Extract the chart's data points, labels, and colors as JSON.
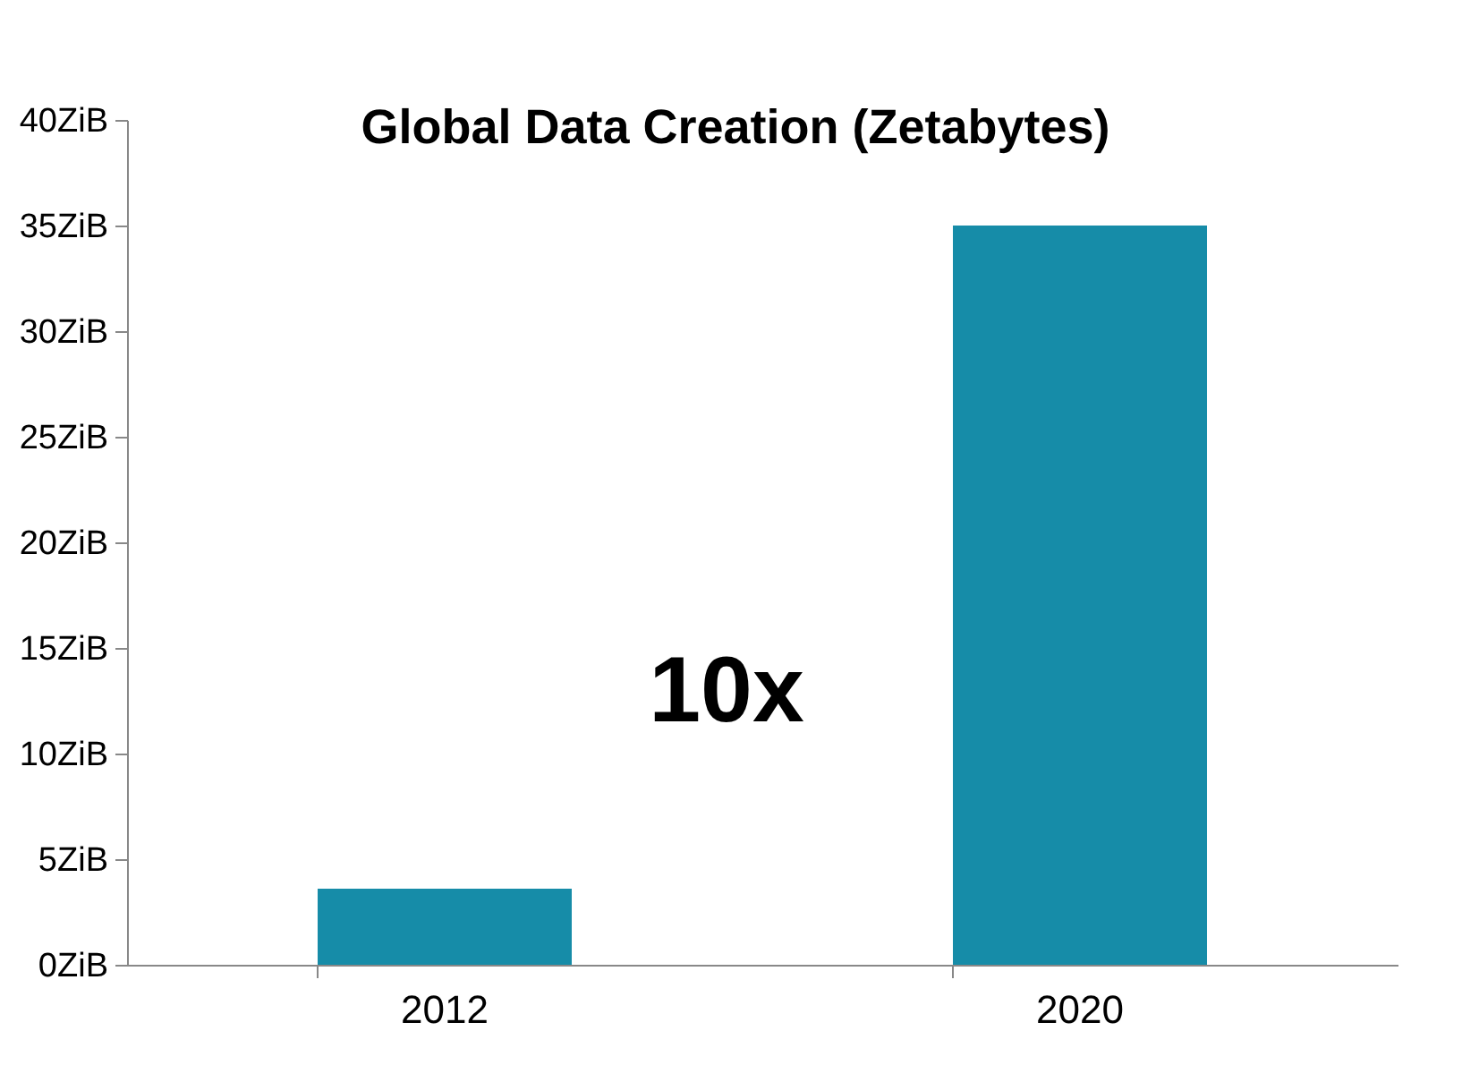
{
  "chart_data": {
    "type": "bar",
    "title": "Global Data Creation (Zetabytes)",
    "categories": [
      "2012",
      "2020"
    ],
    "values": [
      3.6,
      35
    ],
    "color": "#168ca8",
    "ylim": [
      0,
      40
    ],
    "yticks": [
      {
        "value": 0,
        "label": "0ZiB"
      },
      {
        "value": 5,
        "label": "5ZiB"
      },
      {
        "value": 10,
        "label": "10ZiB"
      },
      {
        "value": 15,
        "label": "15ZiB"
      },
      {
        "value": 20,
        "label": "20ZiB"
      },
      {
        "value": 25,
        "label": "25ZiB"
      },
      {
        "value": 30,
        "label": "30ZiB"
      },
      {
        "value": 35,
        "label": "35ZiB"
      },
      {
        "value": 40,
        "label": "40ZiB"
      }
    ],
    "annotations": [
      "10x"
    ],
    "grid": false
  }
}
